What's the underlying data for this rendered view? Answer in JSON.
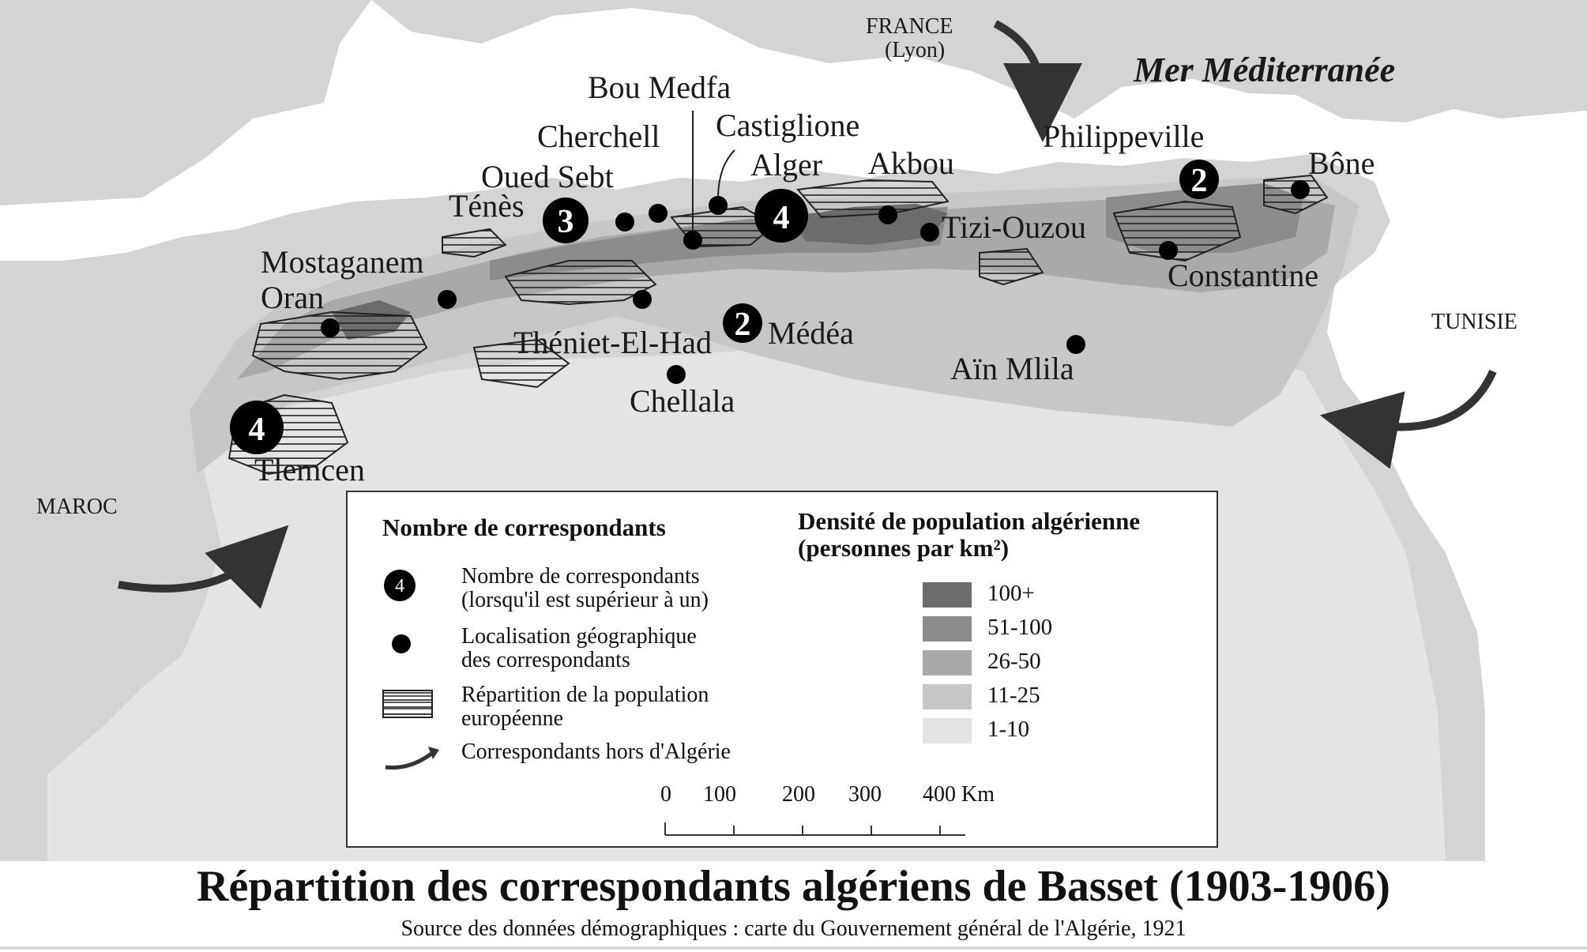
{
  "map": {
    "title": "Répartition des correspondants algériens de Basset (1903-1906)",
    "source": "Source des données démographiques : carte du Gouvernement général de l'Algérie, 1921",
    "sea_label": "Mer Méditerranée",
    "countries": {
      "france": "FRANCE",
      "france_sub": "(Lyon)",
      "maroc": "MAROC",
      "tunisie": "TUNISIE"
    },
    "cities": [
      {
        "name": "Bou Medfa"
      },
      {
        "name": "Cherchell"
      },
      {
        "name": "Castiglione"
      },
      {
        "name": "Oued Sebt"
      },
      {
        "name": "Alger"
      },
      {
        "name": "Akbou"
      },
      {
        "name": "Philippeville"
      },
      {
        "name": "Bône"
      },
      {
        "name": "Ténès"
      },
      {
        "name": "Tizi-Ouzou"
      },
      {
        "name": "Mostaganem"
      },
      {
        "name": "Oran"
      },
      {
        "name": "Constantine"
      },
      {
        "name": "Théniet-El-Had"
      },
      {
        "name": "Médéa"
      },
      {
        "name": "Aïn Mlila"
      },
      {
        "name": "Chellala"
      },
      {
        "name": "Tlemcen"
      }
    ],
    "correspondent_counts": [
      {
        "city": "Ténès",
        "count": "3"
      },
      {
        "city": "Alger",
        "count": "4"
      },
      {
        "city": "Philippeville",
        "count": "2"
      },
      {
        "city": "Médéa",
        "count": "2"
      },
      {
        "city": "Tlemcen",
        "count": "4"
      }
    ],
    "colors": {
      "land_outside": "#d4d4d4",
      "density_1_10": "#e4e4e4",
      "density_11_25": "#c7c7c7",
      "density_26_50": "#a9a9a9",
      "density_51_100": "#8c8c8c",
      "density_100plus": "#6c6c6c",
      "marker": "#000000"
    }
  },
  "legend": {
    "correspondents_title": "Nombre de correspondants",
    "count_symbol": "4",
    "count_label_1": "Nombre de correspondants",
    "count_label_2": "(lorsqu'il est supérieur à un)",
    "location_label_1": "Localisation géographique",
    "location_label_2": "des correspondants",
    "european_label_1": "Répartition de la population",
    "european_label_2": "européenne",
    "outside_label": "Correspondants hors d'Algérie",
    "density_title_1": "Densité de population algérienne",
    "density_title_2": "(personnes par km²)",
    "density_classes": [
      "100+",
      "51-100",
      "26-50",
      "11-25",
      "1-10"
    ],
    "scale_ticks": [
      "0",
      "100",
      "200",
      "300",
      "400 Km"
    ]
  }
}
